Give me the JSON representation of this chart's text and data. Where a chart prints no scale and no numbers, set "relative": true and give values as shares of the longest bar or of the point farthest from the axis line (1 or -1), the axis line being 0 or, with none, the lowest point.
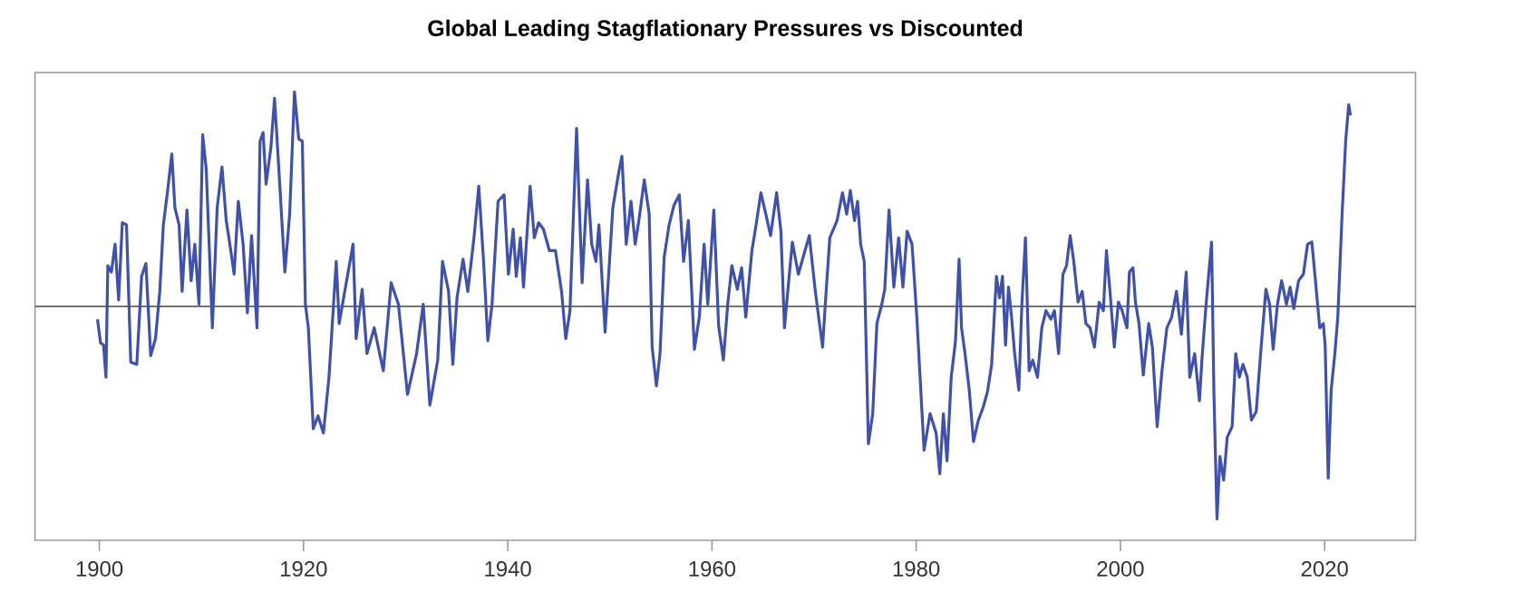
{
  "chart_data": {
    "type": "line",
    "title": "Global Leading Stagflationary Pressures vs Discounted",
    "relative": true,
    "xlim": [
      1893.7,
      2028.9
    ],
    "xticks": [
      1900,
      1920,
      1940,
      1960,
      1980,
      2000,
      2020
    ],
    "series": [
      {
        "color": "#3f51a8",
        "x": [
          1899.82,
          1900.12,
          1900.41,
          1900.65,
          1900.83,
          1901.18,
          1901.54,
          1901.89,
          1902.25,
          1902.66,
          1903.08,
          1903.67,
          1904.14,
          1904.56,
          1905.03,
          1905.5,
          1905.92,
          1906.27,
          1906.69,
          1907.1,
          1907.4,
          1907.81,
          1908.11,
          1908.58,
          1908.99,
          1909.35,
          1909.76,
          1910.12,
          1910.47,
          1911.07,
          1911.54,
          1912.01,
          1912.43,
          1912.78,
          1913.2,
          1913.61,
          1914.08,
          1914.5,
          1914.91,
          1915.44,
          1915.74,
          1916.04,
          1916.33,
          1916.8,
          1917.16,
          1917.63,
          1918.17,
          1918.64,
          1919.11,
          1919.53,
          1919.88,
          1920.18,
          1920.47,
          1920.95,
          1921.42,
          1921.95,
          1922.49,
          1923.2,
          1923.49,
          1923.96,
          1924.85,
          1925.15,
          1925.74,
          1926.21,
          1926.92,
          1927.81,
          1928.58,
          1929.29,
          1930.18,
          1931.07,
          1931.72,
          1932.37,
          1933.14,
          1933.61,
          1934.2,
          1934.62,
          1935.03,
          1935.62,
          1936.09,
          1936.69,
          1937.16,
          1937.63,
          1938.05,
          1938.46,
          1939.05,
          1939.64,
          1940.06,
          1940.53,
          1940.83,
          1941.24,
          1941.54,
          1942.19,
          1942.6,
          1943.02,
          1943.49,
          1944.08,
          1944.67,
          1945.27,
          1945.68,
          1946.09,
          1946.74,
          1947.28,
          1947.81,
          1948.22,
          1948.64,
          1948.93,
          1949.53,
          1950.29,
          1950.89,
          1951.18,
          1951.6,
          1952.07,
          1952.48,
          1952.84,
          1953.37,
          1953.85,
          1954.14,
          1954.56,
          1954.91,
          1955.32,
          1955.8,
          1956.27,
          1956.8,
          1957.22,
          1957.69,
          1958.28,
          1958.76,
          1959.23,
          1959.59,
          1960.18,
          1960.65,
          1961.12,
          1961.54,
          1961.95,
          1962.48,
          1962.9,
          1963.31,
          1963.91,
          1964.32,
          1964.79,
          1965.27,
          1965.74,
          1966.33,
          1966.75,
          1967.1,
          1967.46,
          1967.87,
          1968.46,
          1968.93,
          1969.53,
          1970.12,
          1970.83,
          1971.18,
          1971.54,
          1972.25,
          1972.78,
          1973.19,
          1973.55,
          1973.96,
          1974.26,
          1974.56,
          1974.91,
          1975.32,
          1975.74,
          1976.15,
          1976.63,
          1976.92,
          1977.34,
          1977.81,
          1978.28,
          1978.7,
          1979.11,
          1979.59,
          1980.06,
          1980.77,
          1981.36,
          1981.95,
          1982.31,
          1982.66,
          1983.02,
          1983.43,
          1983.85,
          1984.2,
          1984.44,
          1984.78,
          1985.2,
          1985.61,
          1986.09,
          1986.56,
          1986.97,
          1987.39,
          1987.86,
          1988.16,
          1988.45,
          1988.75,
          1989.04,
          1989.34,
          1989.64,
          1990.05,
          1990.35,
          1990.7,
          1991.06,
          1991.41,
          1991.88,
          1992.3,
          1992.71,
          1993.19,
          1993.54,
          1993.95,
          1994.37,
          1994.72,
          1995.08,
          1995.43,
          1995.85,
          1996.26,
          1996.62,
          1997.03,
          1997.45,
          1997.92,
          1998.33,
          1998.63,
          1998.98,
          1999.4,
          1999.81,
          2000.17,
          2000.64,
          2000.88,
          2001.23,
          2001.47,
          2001.82,
          2002.24,
          2002.77,
          2003.13,
          2003.6,
          2004.07,
          2004.55,
          2005.02,
          2005.49,
          2005.97,
          2006.44,
          2006.79,
          2007.27,
          2007.74,
          2007.98,
          2008.39,
          2008.93,
          2009.16,
          2009.46,
          2009.75,
          2010.11,
          2010.46,
          2010.94,
          2011.29,
          2011.65,
          2012.0,
          2012.42,
          2012.83,
          2013.3,
          2013.78,
          2014.25,
          2014.61,
          2014.96,
          2015.38,
          2015.79,
          2016.26,
          2016.62,
          2016.98,
          2017.45,
          2017.92,
          2018.33,
          2018.75,
          2019.1,
          2019.52,
          2019.87,
          2020.05,
          2020.35,
          2020.64,
          2021.0,
          2021.29,
          2021.71,
          2022.06,
          2022.36,
          2022.53
        ],
        "values": [
          -0.06,
          -0.17,
          -0.18,
          -0.33,
          0.19,
          0.16,
          0.29,
          0.03,
          0.39,
          0.38,
          -0.26,
          -0.27,
          0.14,
          0.2,
          -0.23,
          -0.15,
          0.07,
          0.38,
          0.54,
          0.71,
          0.46,
          0.38,
          0.07,
          0.45,
          0.12,
          0.29,
          0.01,
          0.8,
          0.64,
          -0.1,
          0.46,
          0.65,
          0.4,
          0.29,
          0.15,
          0.49,
          0.29,
          -0.03,
          0.33,
          -0.1,
          0.77,
          0.81,
          0.57,
          0.74,
          0.97,
          0.6,
          0.16,
          0.43,
          1.0,
          0.78,
          0.77,
          0.01,
          -0.1,
          -0.57,
          -0.51,
          -0.59,
          -0.33,
          0.21,
          -0.08,
          0.05,
          0.29,
          -0.15,
          0.08,
          -0.22,
          -0.1,
          -0.3,
          0.11,
          0.01,
          -0.41,
          -0.22,
          0.01,
          -0.46,
          -0.25,
          0.21,
          0.07,
          -0.27,
          0.04,
          0.22,
          0.07,
          0.32,
          0.56,
          0.21,
          -0.16,
          0.01,
          0.49,
          0.52,
          0.15,
          0.36,
          0.14,
          0.32,
          0.09,
          0.56,
          0.32,
          0.39,
          0.36,
          0.26,
          0.26,
          0.07,
          -0.15,
          -0.02,
          0.83,
          0.11,
          0.59,
          0.29,
          0.21,
          0.38,
          -0.12,
          0.46,
          0.63,
          0.7,
          0.29,
          0.49,
          0.29,
          0.4,
          0.59,
          0.43,
          -0.19,
          -0.37,
          -0.22,
          0.23,
          0.38,
          0.47,
          0.52,
          0.21,
          0.4,
          -0.2,
          -0.05,
          0.29,
          0.01,
          0.45,
          -0.09,
          -0.25,
          0.01,
          0.19,
          0.08,
          0.18,
          -0.05,
          0.26,
          0.38,
          0.53,
          0.43,
          0.33,
          0.53,
          0.35,
          -0.1,
          0.09,
          0.3,
          0.15,
          0.23,
          0.33,
          0.07,
          -0.19,
          0.07,
          0.32,
          0.4,
          0.53,
          0.43,
          0.54,
          0.4,
          0.49,
          0.29,
          0.21,
          -0.64,
          -0.5,
          -0.08,
          0.01,
          0.08,
          0.45,
          0.09,
          0.32,
          0.09,
          0.35,
          0.29,
          -0.05,
          -0.67,
          -0.5,
          -0.59,
          -0.78,
          -0.5,
          -0.72,
          -0.33,
          -0.16,
          0.22,
          -0.1,
          -0.22,
          -0.39,
          -0.63,
          -0.53,
          -0.47,
          -0.4,
          -0.27,
          0.14,
          0.04,
          0.14,
          -0.18,
          0.09,
          -0.05,
          -0.22,
          -0.39,
          0.01,
          0.32,
          -0.3,
          -0.25,
          -0.33,
          -0.1,
          -0.02,
          -0.06,
          -0.02,
          -0.22,
          0.15,
          0.19,
          0.33,
          0.21,
          0.02,
          0.07,
          -0.08,
          -0.1,
          -0.19,
          0.02,
          -0.02,
          0.26,
          0.07,
          -0.19,
          0.02,
          -0.02,
          -0.1,
          0.16,
          0.18,
          0.02,
          -0.08,
          -0.32,
          -0.08,
          -0.19,
          -0.56,
          -0.3,
          -0.1,
          -0.05,
          0.07,
          -0.13,
          0.16,
          -0.33,
          -0.22,
          -0.44,
          -0.25,
          0.01,
          0.3,
          -0.41,
          -0.99,
          -0.7,
          -0.81,
          -0.61,
          -0.56,
          -0.22,
          -0.33,
          -0.27,
          -0.33,
          -0.53,
          -0.49,
          -0.19,
          0.08,
          0.01,
          -0.2,
          0.01,
          0.12,
          0.01,
          0.09,
          -0.01,
          0.12,
          0.15,
          0.29,
          0.3,
          0.12,
          -0.1,
          -0.08,
          -0.18,
          -0.8,
          -0.39,
          -0.22,
          -0.05,
          0.43,
          0.77,
          0.94,
          0.89
        ]
      }
    ]
  }
}
